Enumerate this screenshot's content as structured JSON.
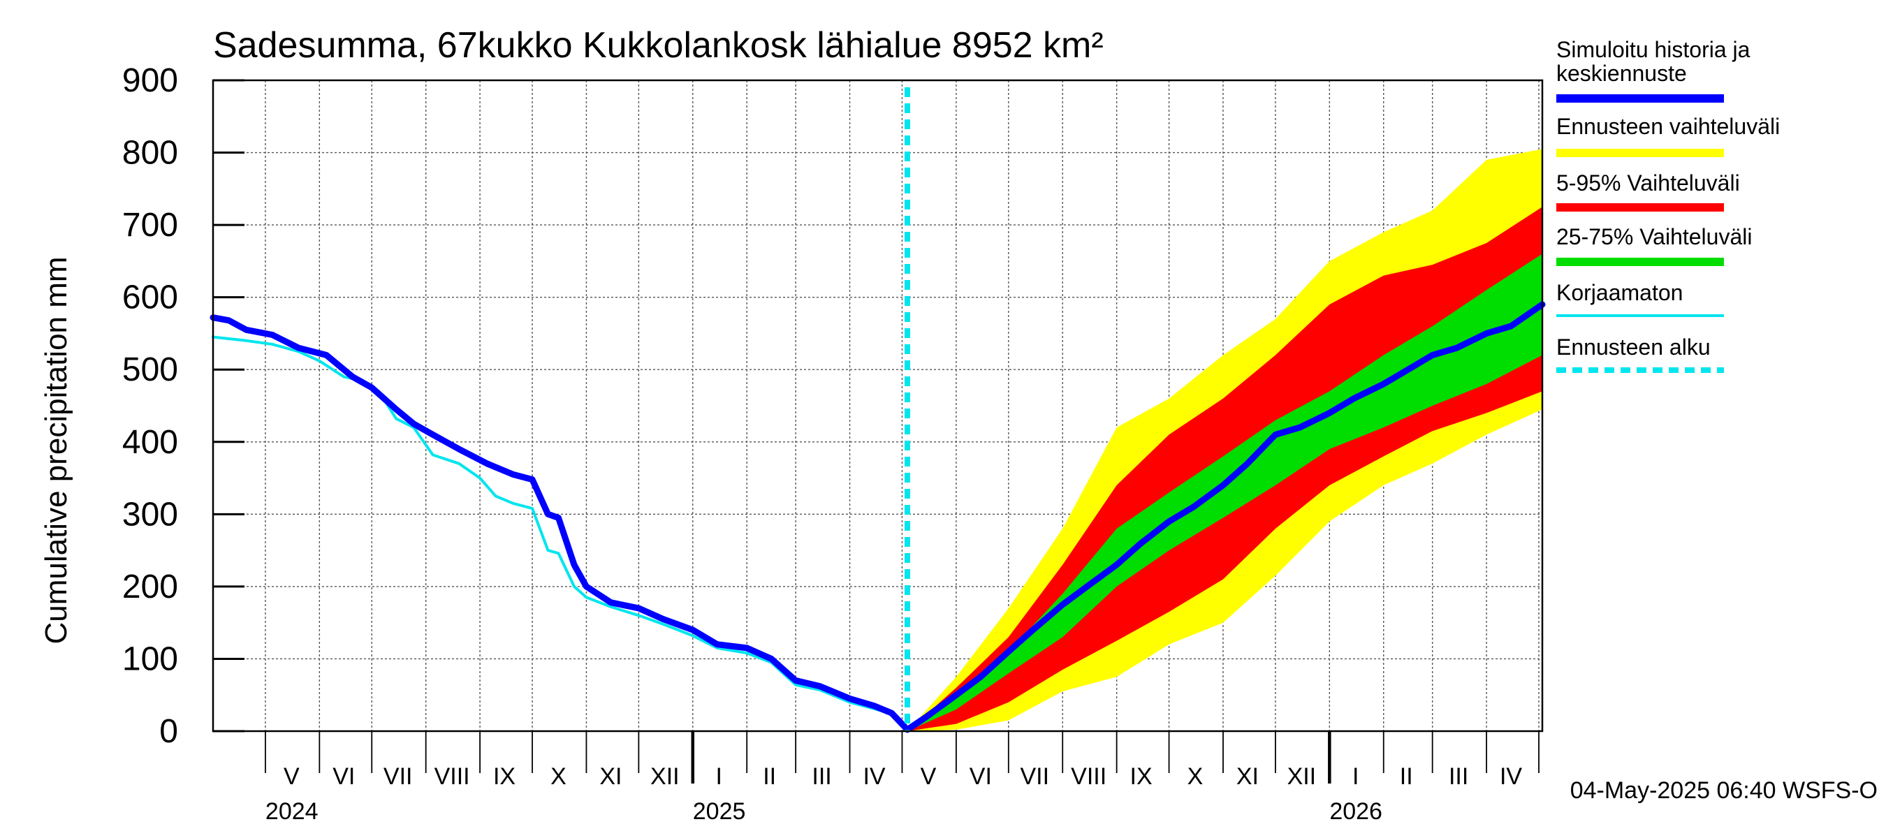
{
  "chart_data": {
    "type": "area",
    "title": "Sadesumma, 67kukko Kukkolankosk lähialue 8952 km²",
    "xlabel": "",
    "ylabel": "Cumulative precipitation   mm",
    "ylim": [
      0,
      900
    ],
    "y_ticks": [
      0,
      100,
      200,
      300,
      400,
      500,
      600,
      700,
      800,
      900
    ],
    "x_range": [
      "2024-04-01",
      "2026-05-03"
    ],
    "grid": true,
    "legend_position": "right",
    "forecast_start": "2025-05-04",
    "month_labels": [
      {
        "label": "V",
        "date": "2024-05-16"
      },
      {
        "label": "VI",
        "date": "2024-06-15"
      },
      {
        "label": "VII",
        "date": "2024-07-16"
      },
      {
        "label": "VIII",
        "date": "2024-08-16"
      },
      {
        "label": "IX",
        "date": "2024-09-15"
      },
      {
        "label": "X",
        "date": "2024-10-16"
      },
      {
        "label": "XI",
        "date": "2024-11-15"
      },
      {
        "label": "XII",
        "date": "2024-12-16"
      },
      {
        "label": "I",
        "date": "2025-01-16"
      },
      {
        "label": "II",
        "date": "2025-02-14"
      },
      {
        "label": "III",
        "date": "2025-03-16"
      },
      {
        "label": "IV",
        "date": "2025-04-15"
      },
      {
        "label": "V",
        "date": "2025-05-16"
      },
      {
        "label": "VI",
        "date": "2025-06-15"
      },
      {
        "label": "VII",
        "date": "2025-07-16"
      },
      {
        "label": "VIII",
        "date": "2025-08-16"
      },
      {
        "label": "IX",
        "date": "2025-09-15"
      },
      {
        "label": "X",
        "date": "2025-10-16"
      },
      {
        "label": "XI",
        "date": "2025-11-15"
      },
      {
        "label": "XII",
        "date": "2025-12-16"
      },
      {
        "label": "I",
        "date": "2026-01-16"
      },
      {
        "label": "II",
        "date": "2026-02-14"
      },
      {
        "label": "III",
        "date": "2026-03-16"
      },
      {
        "label": "IV",
        "date": "2026-04-15"
      }
    ],
    "year_labels": [
      {
        "label": "2024",
        "date": "2024-05-01"
      },
      {
        "label": "2025",
        "date": "2025-01-01"
      },
      {
        "label": "2026",
        "date": "2026-01-01"
      }
    ],
    "series": [
      {
        "name": "Simuloitu historia ja keskiennuste",
        "color": "#0000ff",
        "kind": "line",
        "x": [
          "2024-04-01",
          "2024-04-10",
          "2024-04-20",
          "2024-05-05",
          "2024-05-20",
          "2024-06-05",
          "2024-06-20",
          "2024-07-01",
          "2024-07-15",
          "2024-07-25",
          "2024-08-05",
          "2024-08-20",
          "2024-09-05",
          "2024-09-20",
          "2024-10-01",
          "2024-10-10",
          "2024-10-16",
          "2024-10-25",
          "2024-11-01",
          "2024-11-15",
          "2024-12-01",
          "2024-12-15",
          "2025-01-01",
          "2025-01-15",
          "2025-02-01",
          "2025-02-15",
          "2025-03-01",
          "2025-03-15",
          "2025-04-01",
          "2025-04-15",
          "2025-04-25",
          "2025-05-04",
          "2025-05-15",
          "2025-06-01",
          "2025-06-15",
          "2025-07-01",
          "2025-07-15",
          "2025-08-01",
          "2025-08-15",
          "2025-09-01",
          "2025-09-15",
          "2025-10-01",
          "2025-10-15",
          "2025-11-01",
          "2025-11-15",
          "2025-12-01",
          "2025-12-15",
          "2026-01-01",
          "2026-01-15",
          "2026-02-01",
          "2026-02-15",
          "2026-03-01",
          "2026-03-15",
          "2026-04-01",
          "2026-04-15",
          "2026-05-03"
        ],
        "values": [
          572,
          568,
          555,
          548,
          530,
          520,
          490,
          475,
          445,
          425,
          410,
          390,
          370,
          355,
          348,
          300,
          295,
          230,
          200,
          178,
          170,
          155,
          140,
          120,
          115,
          100,
          70,
          62,
          45,
          35,
          25,
          2,
          20,
          50,
          75,
          110,
          140,
          175,
          200,
          230,
          260,
          290,
          310,
          340,
          370,
          410,
          420,
          440,
          460,
          480,
          500,
          520,
          530,
          550,
          560,
          590
        ]
      },
      {
        "name": "Korjaamaton",
        "color": "#00e5ee",
        "kind": "line",
        "x": [
          "2024-04-01",
          "2024-04-20",
          "2024-05-05",
          "2024-05-20",
          "2024-06-01",
          "2024-06-15",
          "2024-06-25",
          "2024-07-05",
          "2024-07-15",
          "2024-07-25",
          "2024-08-05",
          "2024-08-20",
          "2024-09-01",
          "2024-09-10",
          "2024-09-20",
          "2024-10-01",
          "2024-10-10",
          "2024-10-16",
          "2024-10-25",
          "2024-11-01",
          "2024-11-15",
          "2024-12-01",
          "2024-12-15",
          "2025-01-01",
          "2025-01-15",
          "2025-02-01",
          "2025-02-15",
          "2025-03-01",
          "2025-03-15",
          "2025-04-01",
          "2025-04-15",
          "2025-04-25",
          "2025-05-04"
        ],
        "values": [
          545,
          540,
          535,
          525,
          512,
          490,
          485,
          470,
          432,
          420,
          382,
          370,
          350,
          325,
          315,
          308,
          250,
          246,
          200,
          185,
          172,
          160,
          148,
          132,
          115,
          108,
          95,
          64,
          57,
          40,
          31,
          24,
          4
        ]
      },
      {
        "name": "Ennusteen vaihteluväli",
        "color": "#ffff00",
        "kind": "band",
        "x": [
          "2025-05-04",
          "2025-06-01",
          "2025-07-01",
          "2025-08-01",
          "2025-09-01",
          "2025-10-01",
          "2025-11-01",
          "2025-12-01",
          "2026-01-01",
          "2026-02-01",
          "2026-03-01",
          "2026-04-01",
          "2026-05-03"
        ],
        "low": [
          0,
          2,
          15,
          55,
          75,
          120,
          150,
          215,
          290,
          340,
          370,
          410,
          445
        ],
        "high": [
          0,
          75,
          170,
          280,
          420,
          460,
          520,
          570,
          650,
          690,
          720,
          790,
          805
        ]
      },
      {
        "name": "5-95% Vaihteluväli",
        "color": "#ff0000",
        "kind": "band",
        "x": [
          "2025-05-04",
          "2025-06-01",
          "2025-07-01",
          "2025-08-01",
          "2025-09-01",
          "2025-10-01",
          "2025-11-01",
          "2025-12-01",
          "2026-01-01",
          "2026-02-01",
          "2026-03-01",
          "2026-04-01",
          "2026-05-03"
        ],
        "low": [
          0,
          10,
          40,
          85,
          125,
          165,
          210,
          280,
          340,
          380,
          415,
          440,
          470
        ],
        "high": [
          0,
          60,
          130,
          230,
          340,
          410,
          460,
          520,
          590,
          630,
          645,
          675,
          725
        ]
      },
      {
        "name": "25-75% Vaihteluväli",
        "color": "#00dd00",
        "kind": "band",
        "x": [
          "2025-05-04",
          "2025-06-01",
          "2025-07-01",
          "2025-08-01",
          "2025-09-01",
          "2025-10-01",
          "2025-11-01",
          "2025-12-01",
          "2026-01-01",
          "2026-02-01",
          "2026-03-01",
          "2026-04-01",
          "2026-05-03"
        ],
        "low": [
          0,
          30,
          80,
          130,
          200,
          250,
          295,
          340,
          390,
          420,
          450,
          480,
          520
        ],
        "high": [
          0,
          45,
          110,
          190,
          280,
          330,
          380,
          430,
          470,
          520,
          560,
          610,
          660
        ]
      }
    ],
    "forecast_start_label": "Ennusteen alku",
    "forecast_start_color": "#00e5ee"
  },
  "legend": [
    {
      "label": "Simuloitu historia ja keskiennuste",
      "color": "#0000ff",
      "style": "solid-thick"
    },
    {
      "label": "Ennusteen vaihteluväli",
      "color": "#ffff00",
      "style": "solid-thick"
    },
    {
      "label": "5-95% Vaihteluväli",
      "color": "#ff0000",
      "style": "solid-thick"
    },
    {
      "label": "25-75% Vaihteluväli",
      "color": "#00dd00",
      "style": "solid-thick"
    },
    {
      "label": "Korjaamaton",
      "color": "#00e5ee",
      "style": "solid-thin"
    },
    {
      "label": "Ennusteen alku",
      "color": "#00e5ee",
      "style": "dashed"
    }
  ],
  "footer": "04-May-2025 06:40 WSFS-O"
}
